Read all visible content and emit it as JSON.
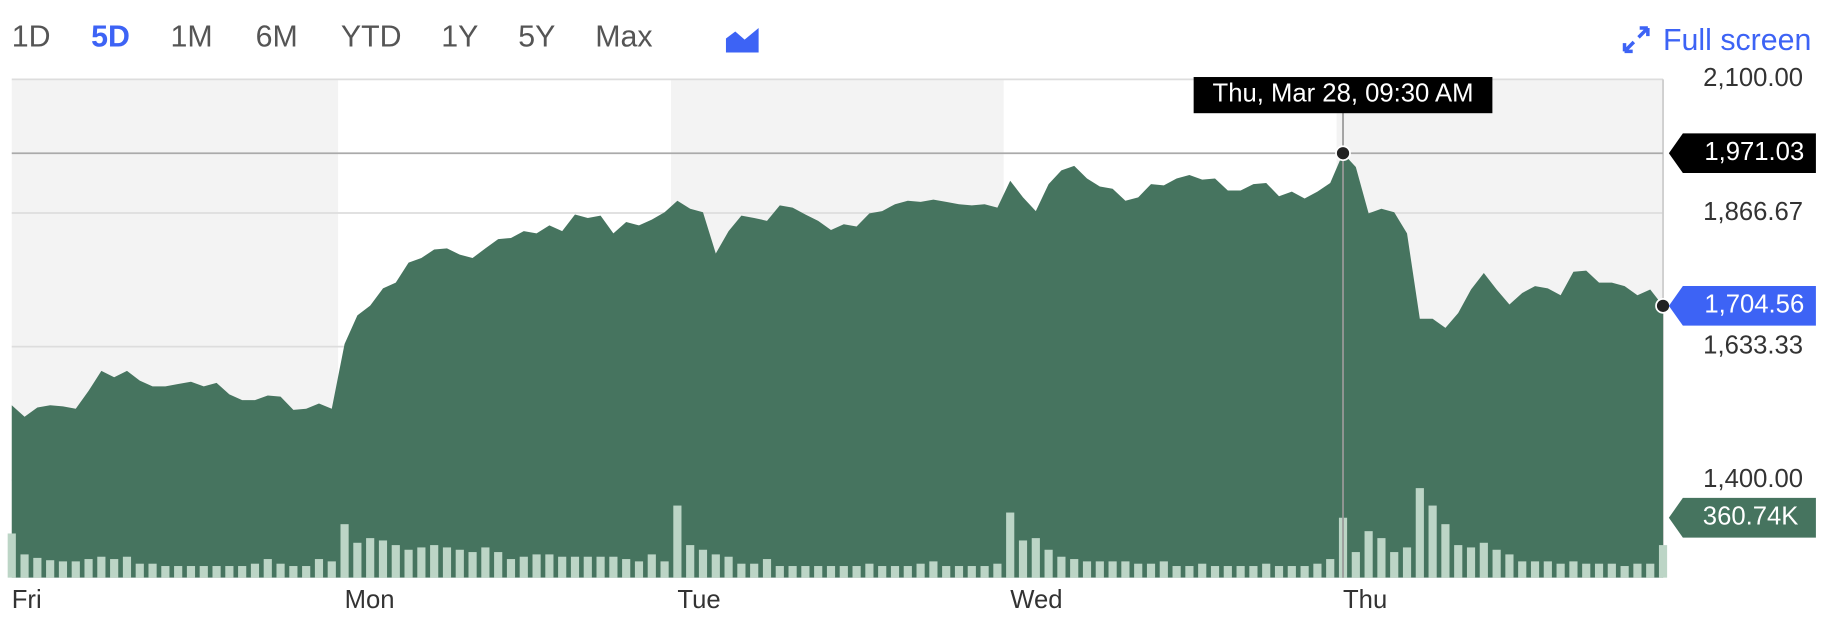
{
  "ui": {
    "ranges": [
      "1D",
      "5D",
      "1M",
      "6M",
      "YTD",
      "1Y",
      "5Y",
      "Max"
    ],
    "active_range": "5D",
    "fullscreen": "Full screen"
  },
  "chart_data": {
    "type": "area",
    "tooltip": "Thu, Mar 28, 09:30 AM",
    "categories": [
      "Fri",
      null,
      null,
      null,
      null,
      null,
      null,
      null,
      null,
      null,
      null,
      null,
      null,
      null,
      null,
      null,
      null,
      null,
      null,
      null,
      null,
      null,
      null,
      null,
      null,
      null,
      "Mon",
      null,
      null,
      null,
      null,
      null,
      null,
      null,
      null,
      null,
      null,
      null,
      null,
      null,
      null,
      null,
      null,
      null,
      null,
      null,
      null,
      null,
      null,
      null,
      null,
      null,
      "Tue",
      null,
      null,
      null,
      null,
      null,
      null,
      null,
      null,
      null,
      null,
      null,
      null,
      null,
      null,
      null,
      null,
      null,
      null,
      null,
      null,
      null,
      null,
      null,
      null,
      null,
      "Wed",
      null,
      null,
      null,
      null,
      null,
      null,
      null,
      null,
      null,
      null,
      null,
      null,
      null,
      null,
      null,
      null,
      null,
      null,
      null,
      null,
      null,
      null,
      null,
      null,
      null,
      "Thu",
      null,
      null,
      null,
      null,
      null,
      null,
      null,
      null,
      null,
      null,
      null,
      null,
      null,
      null,
      null,
      null,
      null,
      null,
      null,
      null,
      null,
      null,
      null,
      null,
      null
    ],
    "series": [
      {
        "type": "area",
        "color": "#46745f",
        "values": [
          1531,
          1511,
          1527,
          1531,
          1529,
          1525,
          1556,
          1591,
          1580,
          1591,
          1574,
          1564,
          1564,
          1568,
          1572,
          1564,
          1570,
          1550,
          1540,
          1540,
          1548,
          1546,
          1523,
          1525,
          1534,
          1525,
          1638,
          1688,
          1705,
          1735,
          1745,
          1780,
          1788,
          1803,
          1805,
          1794,
          1788,
          1805,
          1821,
          1823,
          1835,
          1831,
          1845,
          1835,
          1864,
          1858,
          1862,
          1831,
          1851,
          1845,
          1855,
          1868,
          1888,
          1874,
          1868,
          1796,
          1835,
          1862,
          1858,
          1853,
          1880,
          1876,
          1864,
          1853,
          1837,
          1847,
          1843,
          1866,
          1870,
          1882,
          1888,
          1886,
          1890,
          1886,
          1882,
          1880,
          1882,
          1876,
          1923,
          1894,
          1870,
          1917,
          1941,
          1949,
          1927,
          1913,
          1909,
          1888,
          1894,
          1917,
          1915,
          1927,
          1933,
          1925,
          1927,
          1906,
          1906,
          1917,
          1919,
          1896,
          1904,
          1892,
          1904,
          1919,
          1971.03,
          1947,
          1866,
          1874,
          1868,
          1831,
          1682,
          1682,
          1666,
          1692,
          1733,
          1762,
          1733,
          1707,
          1727,
          1739,
          1735,
          1723,
          1764,
          1766,
          1745,
          1745,
          1739,
          1723,
          1733,
          1704.56
        ],
        "value_labels": [
          null,
          null,
          null,
          null,
          null,
          null,
          null,
          null,
          null,
          null,
          null,
          null,
          null,
          null,
          null,
          null,
          null,
          null,
          null,
          null,
          null,
          null,
          null,
          null,
          null,
          null,
          null,
          null,
          null,
          null,
          null,
          null,
          null,
          null,
          null,
          null,
          null,
          null,
          null,
          null,
          null,
          null,
          null,
          null,
          null,
          null,
          null,
          null,
          null,
          null,
          null,
          null,
          null,
          null,
          null,
          null,
          null,
          null,
          null,
          null,
          null,
          null,
          null,
          null,
          null,
          null,
          null,
          null,
          null,
          null,
          null,
          null,
          null,
          null,
          null,
          null,
          null,
          null,
          null,
          null,
          null,
          null,
          null,
          null,
          null,
          null,
          null,
          null,
          null,
          null,
          null,
          null,
          null,
          null,
          null,
          null,
          null,
          null,
          null,
          null,
          null,
          null,
          null,
          null,
          "1,971.03",
          null,
          null,
          null,
          null,
          null,
          null,
          null,
          null,
          null,
          null,
          null,
          null,
          null,
          null,
          null,
          null,
          null,
          null,
          null,
          null,
          null,
          null,
          null,
          null,
          "1,704.56"
        ]
      },
      {
        "type": "bar",
        "axis": "y2",
        "color": "#bcd5c6",
        "values": [
          266000,
          140000,
          119000,
          105000,
          98000,
          98000,
          112000,
          126000,
          112000,
          126000,
          84000,
          84000,
          70000,
          70000,
          70000,
          70000,
          70000,
          70000,
          70000,
          84000,
          112000,
          84000,
          70000,
          70000,
          112000,
          98000,
          322000,
          210000,
          238000,
          224000,
          196000,
          168000,
          182000,
          196000,
          182000,
          168000,
          154000,
          182000,
          154000,
          112000,
          126000,
          140000,
          140000,
          126000,
          126000,
          126000,
          126000,
          126000,
          112000,
          98000,
          140000,
          98000,
          434000,
          196000,
          168000,
          140000,
          126000,
          84000,
          84000,
          112000,
          70000,
          70000,
          70000,
          70000,
          70000,
          70000,
          70000,
          84000,
          70000,
          70000,
          70000,
          84000,
          98000,
          70000,
          70000,
          70000,
          70000,
          84000,
          392000,
          224000,
          238000,
          168000,
          126000,
          112000,
          98000,
          98000,
          98000,
          98000,
          84000,
          84000,
          98000,
          70000,
          70000,
          84000,
          70000,
          70000,
          70000,
          70000,
          84000,
          70000,
          70000,
          70000,
          84000,
          112000,
          360740,
          154000,
          280000,
          238000,
          154000,
          182000,
          539000,
          434000,
          322000,
          196000,
          182000,
          210000,
          168000,
          140000,
          98000,
          98000,
          98000,
          84000,
          98000,
          84000,
          84000,
          84000,
          70000,
          84000,
          84000,
          196000
        ],
        "value_labels": [
          null,
          null,
          null,
          null,
          null,
          null,
          null,
          null,
          null,
          null,
          null,
          null,
          null,
          null,
          null,
          null,
          null,
          null,
          null,
          null,
          null,
          null,
          null,
          null,
          null,
          null,
          null,
          null,
          null,
          null,
          null,
          null,
          null,
          null,
          null,
          null,
          null,
          null,
          null,
          null,
          null,
          null,
          null,
          null,
          null,
          null,
          null,
          null,
          null,
          null,
          null,
          null,
          null,
          null,
          null,
          null,
          null,
          null,
          null,
          null,
          null,
          null,
          null,
          null,
          null,
          null,
          null,
          null,
          null,
          null,
          null,
          null,
          null,
          null,
          null,
          null,
          null,
          null,
          null,
          null,
          null,
          null,
          null,
          null,
          null,
          null,
          null,
          null,
          null,
          null,
          null,
          null,
          null,
          null,
          null,
          null,
          null,
          null,
          null,
          null,
          null,
          null,
          null,
          null,
          "360.74K",
          null,
          null,
          null,
          null,
          null,
          null,
          null,
          null,
          null,
          null,
          null,
          null,
          null,
          null,
          null,
          null,
          null,
          null,
          null,
          null,
          null,
          null,
          null,
          null,
          null
        ]
      }
    ],
    "ylim": [
      1230,
      2100
    ],
    "yticks": [
      {
        "value": 2100,
        "label": "2,100.00"
      },
      {
        "value": 1866.67,
        "label": "1,866.67"
      },
      {
        "value": 1633.33,
        "label": "1,633.33"
      },
      {
        "value": 1400,
        "label": "1,400.00"
      }
    ],
    "y2lim": [
      0,
      3000000
    ],
    "grid": true
  }
}
